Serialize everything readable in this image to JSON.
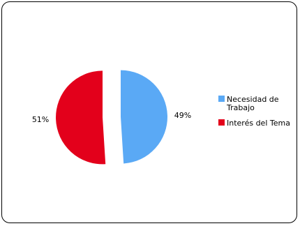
{
  "chart_data": {
    "type": "pie",
    "exploded": true,
    "title": "",
    "slices": [
      {
        "label": "Necesidad de Trabajo",
        "label_lines": [
          "Necesidad de",
          "Trabajo"
        ],
        "value": 49,
        "value_label": "49%",
        "color": "#5aa9f5"
      },
      {
        "label": "Interés del Tema",
        "label_lines": [
          "Interés del Tema"
        ],
        "value": 51,
        "value_label": "51%",
        "color": "#e3001b"
      }
    ],
    "legend_position": "right"
  }
}
